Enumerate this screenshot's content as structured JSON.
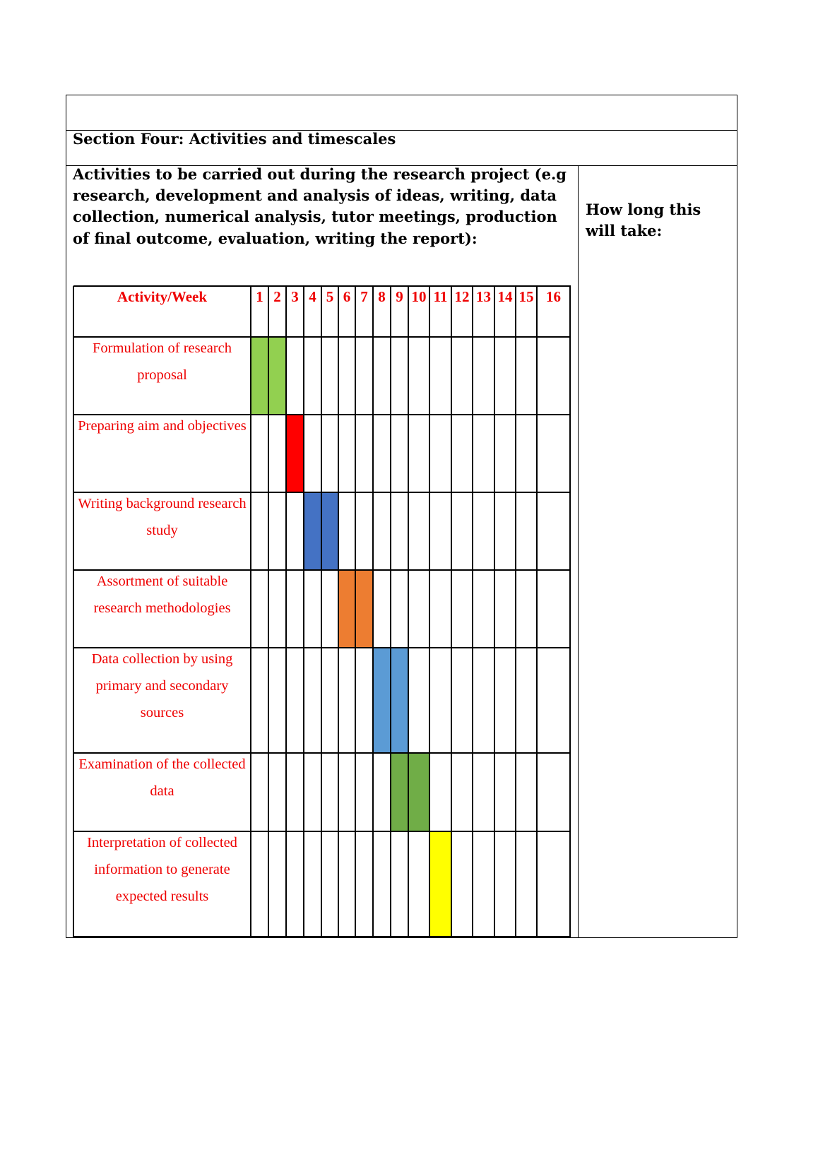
{
  "section_title": "Section Four: Activities and timescales",
  "intro_text": "Activities to be carried out during the research project (e.g research, development and analysis of ideas, writing, data collection, numerical analysis, tutor meetings, production of final outcome, evaluation, writing the report):",
  "how_long_label": "How long this will take:",
  "gantt": {
    "header_label": "Activity/Week",
    "weeks": [
      "1",
      "2",
      "3",
      "4",
      "5",
      "6",
      "7",
      "8",
      "9",
      "10",
      "11",
      "12",
      "13",
      "14",
      "15",
      "16"
    ],
    "activities": [
      {
        "label": "Formulation of research proposal",
        "weeks": [
          1,
          2
        ],
        "color": "#92d050"
      },
      {
        "label": "Preparing aim and objectives",
        "weeks": [
          3
        ],
        "color": "#ff0000"
      },
      {
        "label": "Writing background research study",
        "weeks": [
          4,
          5
        ],
        "color": "#4472c4"
      },
      {
        "label": "Assortment of suitable research methodologies",
        "weeks": [
          6,
          7
        ],
        "color": "#ed7d31"
      },
      {
        "label": "Data collection by using primary and secondary sources",
        "weeks": [
          8,
          9
        ],
        "color": "#5b9bd5"
      },
      {
        "label": "Examination of the collected data",
        "weeks": [
          9,
          10
        ],
        "color": "#70ad47"
      },
      {
        "label": "Interpretation of collected information to generate expected results",
        "weeks": [
          11
        ],
        "color": "#ffff00"
      }
    ]
  }
}
